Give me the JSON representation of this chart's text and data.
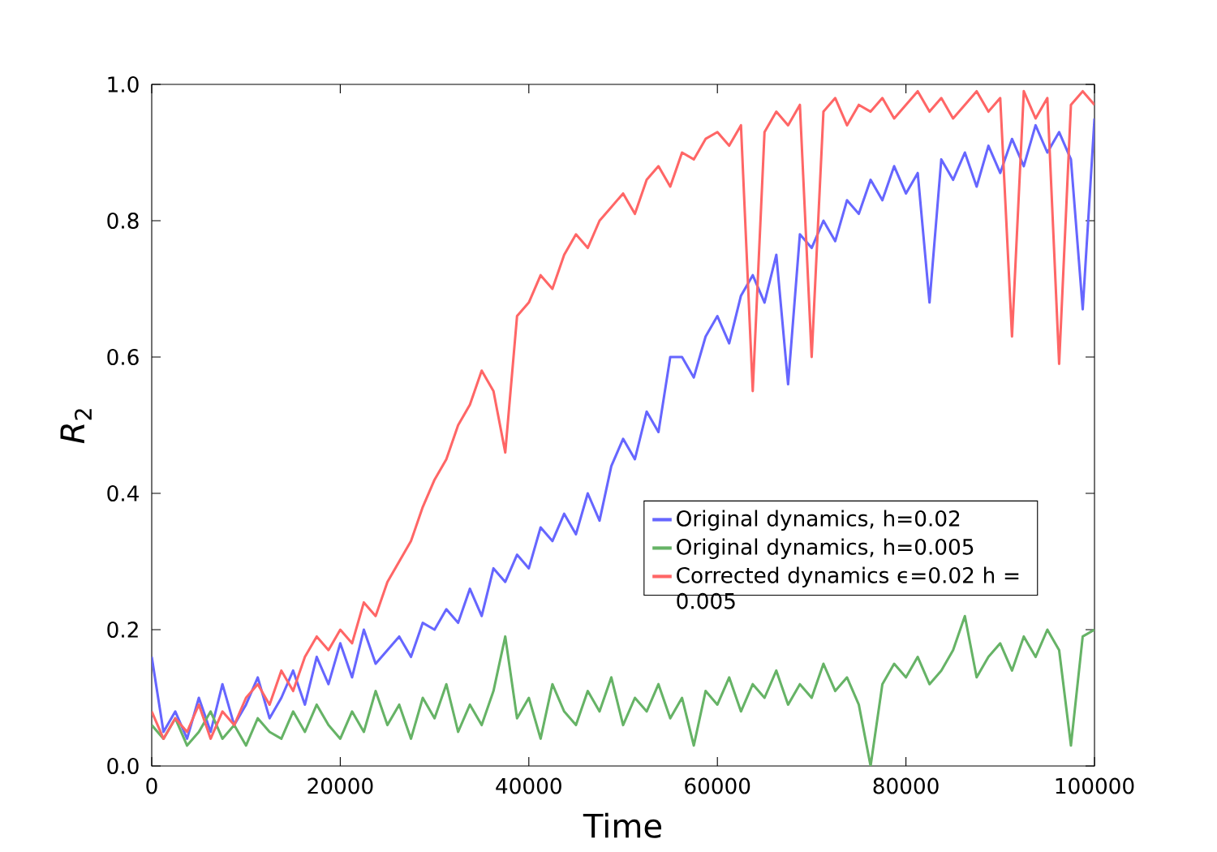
{
  "chart_data": {
    "type": "line",
    "xlabel": "Time",
    "ylabel": "*R*$_{2}$",
    "x": [
      0,
      1250,
      2500,
      3750,
      5000,
      6250,
      7500,
      8750,
      10000,
      11250,
      12500,
      13750,
      15000,
      16250,
      17500,
      18750,
      20000,
      21250,
      22500,
      23750,
      25000,
      26250,
      27500,
      28750,
      30000,
      31250,
      32500,
      33750,
      35000,
      36250,
      37500,
      38750,
      40000,
      41250,
      42500,
      43750,
      45000,
      46250,
      47500,
      48750,
      50000,
      51250,
      52500,
      53750,
      55000,
      56250,
      57500,
      58750,
      60000,
      61250,
      62500,
      63750,
      65000,
      66250,
      67500,
      68750,
      70000,
      71250,
      72500,
      73750,
      75000,
      76250,
      77500,
      78750,
      80000,
      81250,
      82500,
      83750,
      85000,
      86250,
      87500,
      88750,
      90000,
      91250,
      92500,
      93750,
      95000,
      96250,
      97500,
      98750,
      100000
    ],
    "series": [
      {
        "name": "Original dynamics, h=0.02",
        "color": "#6666ff",
        "values": [
          0.16,
          0.05,
          0.08,
          0.04,
          0.1,
          0.05,
          0.12,
          0.06,
          0.09,
          0.13,
          0.07,
          0.1,
          0.14,
          0.09,
          0.16,
          0.12,
          0.18,
          0.13,
          0.2,
          0.15,
          0.17,
          0.19,
          0.16,
          0.21,
          0.2,
          0.23,
          0.21,
          0.26,
          0.22,
          0.29,
          0.27,
          0.31,
          0.29,
          0.35,
          0.33,
          0.37,
          0.34,
          0.4,
          0.36,
          0.44,
          0.48,
          0.45,
          0.52,
          0.49,
          0.6,
          0.6,
          0.57,
          0.63,
          0.66,
          0.62,
          0.69,
          0.72,
          0.68,
          0.75,
          0.56,
          0.78,
          0.76,
          0.8,
          0.77,
          0.83,
          0.81,
          0.86,
          0.83,
          0.88,
          0.84,
          0.87,
          0.68,
          0.89,
          0.86,
          0.9,
          0.85,
          0.91,
          0.87,
          0.92,
          0.88,
          0.94,
          0.9,
          0.93,
          0.89,
          0.67,
          0.95
        ]
      },
      {
        "name": "Original dynamics, h=0.005",
        "color": "#66b366",
        "values": [
          0.06,
          0.04,
          0.07,
          0.03,
          0.05,
          0.08,
          0.04,
          0.06,
          0.03,
          0.07,
          0.05,
          0.04,
          0.08,
          0.05,
          0.09,
          0.06,
          0.04,
          0.08,
          0.05,
          0.11,
          0.06,
          0.09,
          0.04,
          0.1,
          0.07,
          0.12,
          0.05,
          0.09,
          0.06,
          0.11,
          0.19,
          0.07,
          0.1,
          0.04,
          0.12,
          0.08,
          0.06,
          0.11,
          0.08,
          0.13,
          0.06,
          0.1,
          0.08,
          0.12,
          0.07,
          0.1,
          0.03,
          0.11,
          0.09,
          0.13,
          0.08,
          0.12,
          0.1,
          0.14,
          0.09,
          0.12,
          0.1,
          0.15,
          0.11,
          0.13,
          0.09,
          0.0,
          0.12,
          0.15,
          0.13,
          0.16,
          0.12,
          0.14,
          0.17,
          0.22,
          0.13,
          0.16,
          0.18,
          0.14,
          0.19,
          0.16,
          0.2,
          0.17,
          0.03,
          0.19,
          0.2
        ]
      },
      {
        "name": "Corrected dynamics ϵ=0.02 h = 0.005",
        "color": "#ff6666",
        "values": [
          0.08,
          0.04,
          0.07,
          0.05,
          0.09,
          0.04,
          0.08,
          0.06,
          0.1,
          0.12,
          0.09,
          0.14,
          0.11,
          0.16,
          0.19,
          0.17,
          0.2,
          0.18,
          0.24,
          0.22,
          0.27,
          0.3,
          0.33,
          0.38,
          0.42,
          0.45,
          0.5,
          0.53,
          0.58,
          0.55,
          0.46,
          0.66,
          0.68,
          0.72,
          0.7,
          0.75,
          0.78,
          0.76,
          0.8,
          0.82,
          0.84,
          0.81,
          0.86,
          0.88,
          0.85,
          0.9,
          0.89,
          0.92,
          0.93,
          0.91,
          0.94,
          0.55,
          0.93,
          0.96,
          0.94,
          0.97,
          0.6,
          0.96,
          0.98,
          0.94,
          0.97,
          0.96,
          0.98,
          0.95,
          0.97,
          0.99,
          0.96,
          0.98,
          0.95,
          0.97,
          0.99,
          0.96,
          0.98,
          0.63,
          0.99,
          0.95,
          0.98,
          0.59,
          0.97,
          0.99,
          0.97
        ]
      }
    ],
    "xlim": [
      0,
      100000
    ],
    "ylim": [
      0,
      1.0
    ],
    "xticks": [
      0,
      20000,
      40000,
      60000,
      80000,
      100000
    ],
    "yticks": [
      {
        "value": 0,
        "label": "0.0"
      },
      {
        "value": 0.2,
        "label": "0.2"
      },
      {
        "value": 0.4,
        "label": "0.4"
      },
      {
        "value": 0.6,
        "label": "0.6"
      },
      {
        "value": 0.8,
        "label": "0.8"
      },
      {
        "value": 1.0,
        "label": "1.0"
      }
    ],
    "grid": false,
    "legend": "right",
    "marker": "none",
    "line_style": "solid"
  }
}
